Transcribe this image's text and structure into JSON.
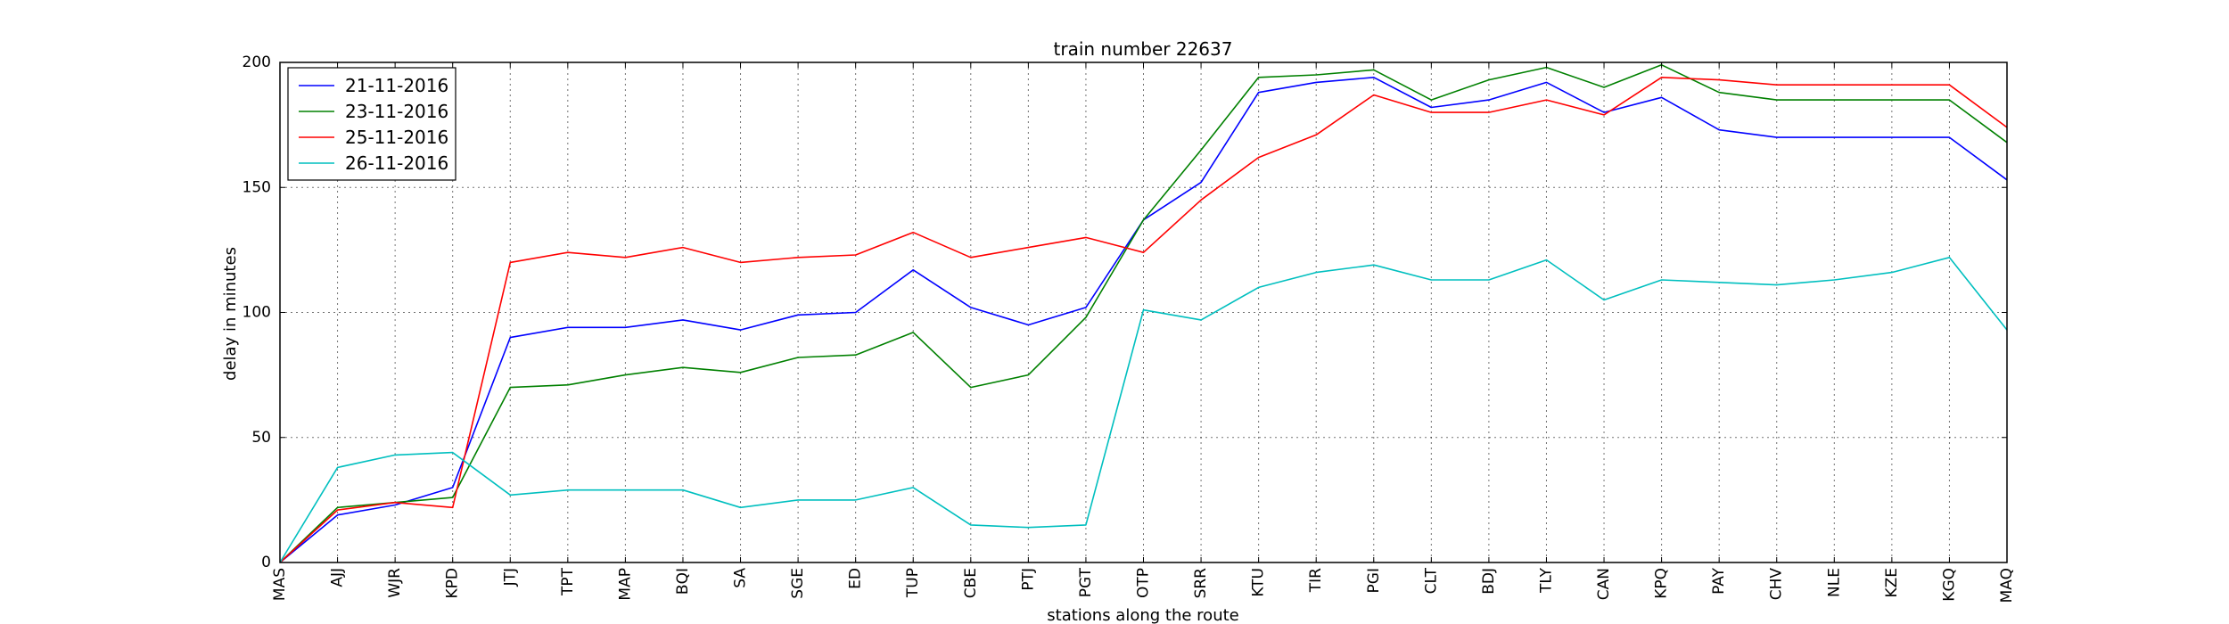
{
  "chart_data": {
    "type": "line",
    "title": "train number 22637",
    "xlabel": "stations along the route",
    "ylabel": "delay in minutes",
    "categories": [
      "MAS",
      "AJJ",
      "WJR",
      "KPD",
      "JTJ",
      "TPT",
      "MAP",
      "BQI",
      "SA",
      "SGE",
      "ED",
      "TUP",
      "CBE",
      "PTJ",
      "PGT",
      "OTP",
      "SRR",
      "KTU",
      "TIR",
      "PGI",
      "CLT",
      "BDJ",
      "TLY",
      "CAN",
      "KPQ",
      "PAY",
      "CHV",
      "NLE",
      "KZE",
      "KGQ",
      "MAQ"
    ],
    "ylim": [
      0,
      200
    ],
    "yticks": [
      "0",
      "50",
      "100",
      "150",
      "200"
    ],
    "grid": true,
    "legend_position": "top-left",
    "series": [
      {
        "name": "21-11-2016",
        "color": "#0000ff",
        "values": [
          0,
          19,
          23,
          30,
          90,
          94,
          94,
          97,
          93,
          99,
          100,
          117,
          102,
          95,
          102,
          137,
          152,
          188,
          192,
          194,
          182,
          185,
          192,
          180,
          186,
          173,
          170,
          170,
          170,
          170,
          153
        ]
      },
      {
        "name": "23-11-2016",
        "color": "#008000",
        "values": [
          0,
          22,
          24,
          26,
          70,
          71,
          75,
          78,
          76,
          82,
          83,
          92,
          70,
          75,
          98,
          137,
          165,
          194,
          195,
          197,
          185,
          193,
          198,
          190,
          199,
          188,
          185,
          185,
          185,
          185,
          168
        ]
      },
      {
        "name": "25-11-2016",
        "color": "#ff0000",
        "values": [
          0,
          21,
          24,
          22,
          120,
          124,
          122,
          126,
          120,
          122,
          123,
          132,
          122,
          126,
          130,
          124,
          145,
          162,
          171,
          187,
          180,
          180,
          185,
          179,
          194,
          193,
          191,
          191,
          191,
          191,
          174
        ]
      },
      {
        "name": "26-11-2016",
        "color": "#00bfbf",
        "values": [
          0,
          38,
          43,
          44,
          27,
          29,
          29,
          29,
          22,
          25,
          25,
          30,
          15,
          14,
          15,
          101,
          97,
          110,
          116,
          119,
          113,
          113,
          121,
          105,
          113,
          112,
          111,
          113,
          116,
          122,
          93
        ]
      }
    ]
  }
}
